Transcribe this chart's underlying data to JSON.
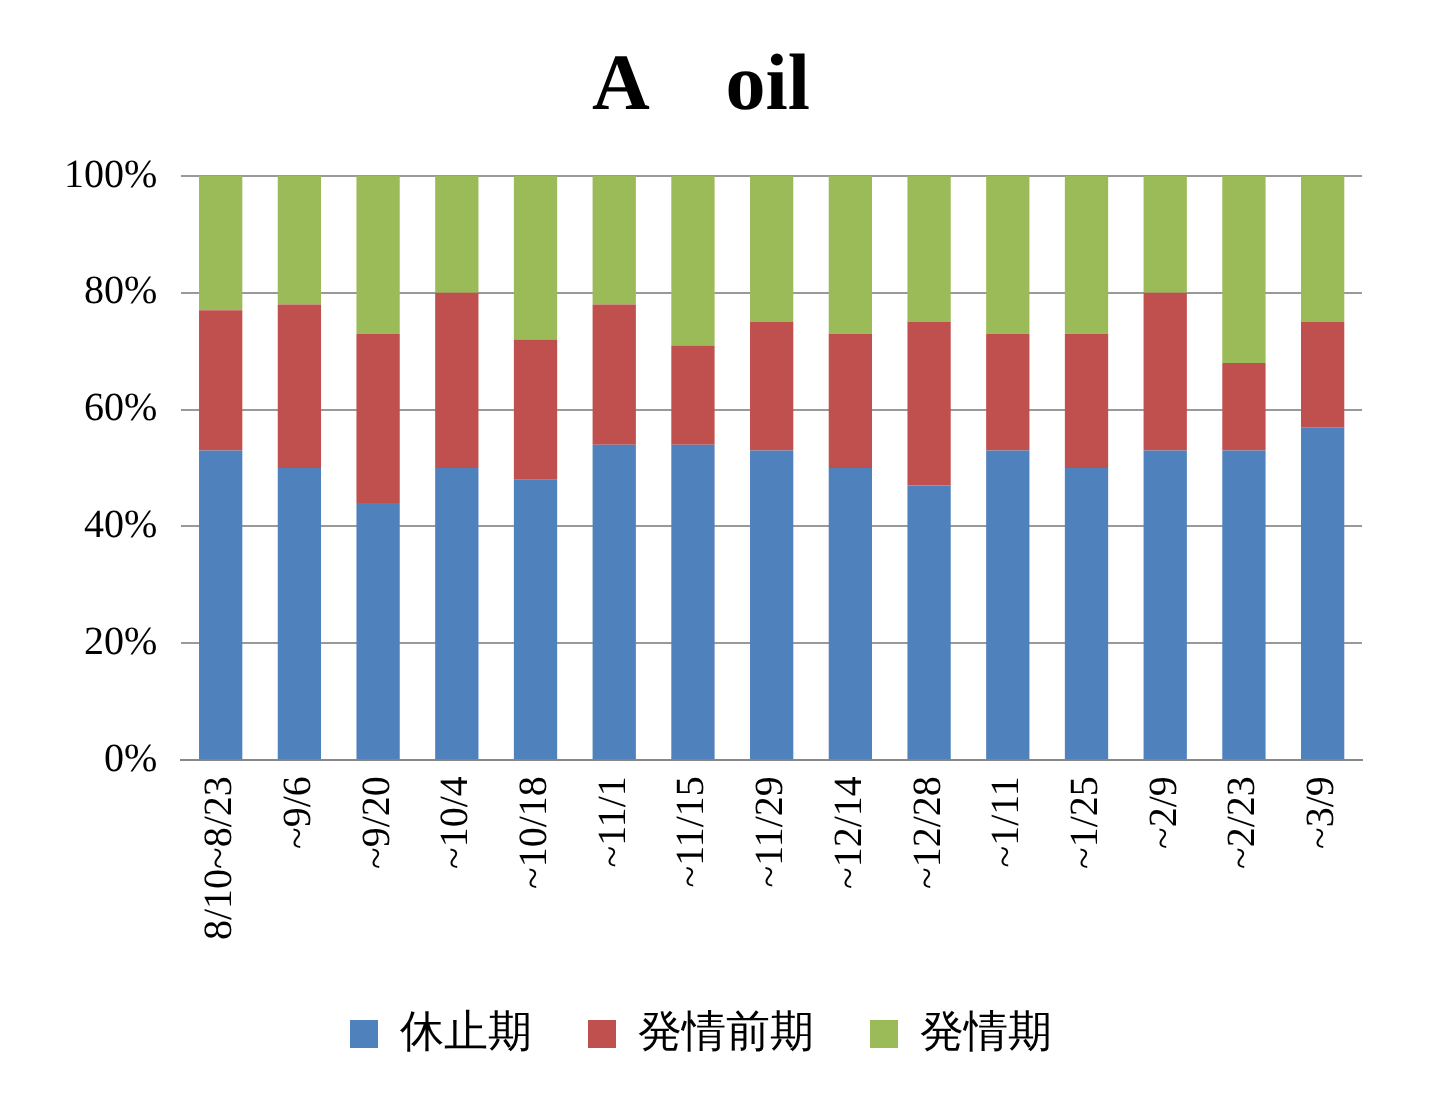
{
  "chart_data": {
    "type": "bar",
    "title": "A　oil",
    "stacked": true,
    "grid": "y",
    "legend": "bottom",
    "categories": [
      "8/10~8/23",
      "~9/6",
      "~9/20",
      "~10/4",
      "~10/18",
      "~11/1",
      "~11/15",
      "~11/29",
      "~12/14",
      "~12/28",
      "~1/11",
      "~1/25",
      "~2/9",
      "~2/23",
      "~3/9"
    ],
    "series": [
      {
        "name": "休止期",
        "color": "#4f81bd",
        "values": [
          53,
          50,
          44,
          50,
          48,
          54,
          54,
          53,
          50,
          47,
          53,
          50,
          53,
          53,
          57
        ]
      },
      {
        "name": "発情前期",
        "color": "#c0504d",
        "values": [
          24,
          28,
          29,
          30,
          24,
          24,
          17,
          22,
          23,
          28,
          20,
          23,
          27,
          15,
          18
        ]
      },
      {
        "name": "発情期",
        "color": "#9bbb59",
        "values": [
          23,
          22,
          27,
          20,
          28,
          22,
          29,
          25,
          27,
          25,
          27,
          27,
          20,
          32,
          25
        ]
      }
    ],
    "ylim": [
      0,
      100
    ],
    "yticks": [
      {
        "value": 0,
        "label": "0%"
      },
      {
        "value": 20,
        "label": "20%"
      },
      {
        "value": 40,
        "label": "40%"
      },
      {
        "value": 60,
        "label": "60%"
      },
      {
        "value": 80,
        "label": "80%"
      },
      {
        "value": 100,
        "label": "100%"
      }
    ]
  }
}
